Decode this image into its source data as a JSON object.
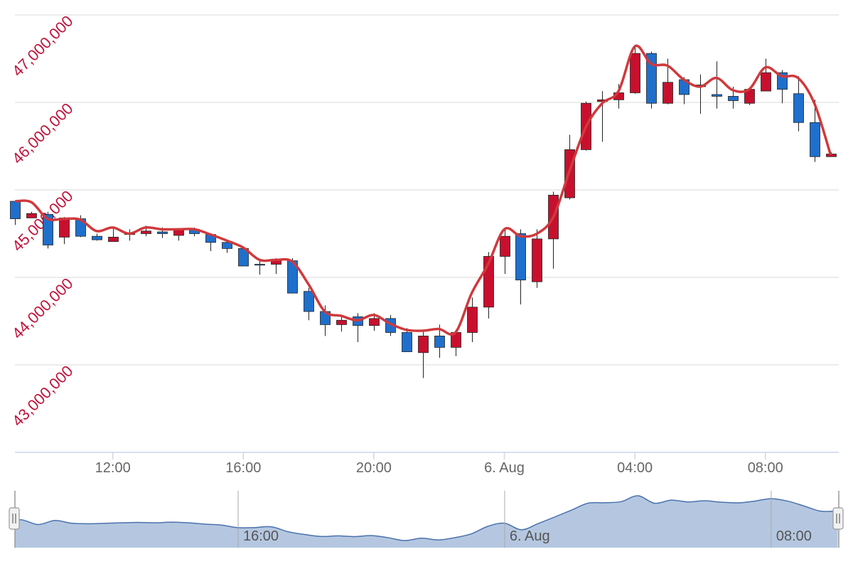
{
  "chart_data": {
    "type": "candlestick",
    "x": [
      9,
      9.5,
      10,
      10.5,
      11,
      11.5,
      12,
      12.5,
      13,
      13.5,
      14,
      14.5,
      15,
      15.5,
      16,
      16.5,
      17,
      17.5,
      18,
      18.5,
      19,
      19.5,
      20,
      20.5,
      21,
      21.5,
      22,
      22.5,
      23,
      23.5,
      24,
      24.5,
      25,
      25.5,
      26,
      26.5,
      27,
      27.5,
      28,
      28.5,
      29,
      29.5,
      30,
      30.5,
      31,
      31.5,
      32,
      32.5,
      33,
      33.5,
      34
    ],
    "open": [
      44870000,
      44680000,
      44720000,
      44460000,
      44670000,
      44470000,
      44410000,
      44490000,
      44500000,
      44520000,
      44480000,
      44550000,
      44490000,
      44400000,
      44330000,
      44150000,
      44150000,
      44190000,
      43840000,
      43610000,
      43460000,
      43550000,
      43450000,
      43530000,
      43370000,
      43140000,
      43330000,
      43200000,
      43370000,
      43660000,
      44240000,
      44500000,
      43950000,
      44440000,
      44910000,
      45460000,
      46010000,
      46030000,
      46110000,
      46560000,
      45990000,
      46260000,
      46200000,
      46090000,
      46070000,
      45990000,
      46130000,
      46340000,
      46100000,
      45770000,
      45380000
    ],
    "high": [
      44870000,
      44750000,
      44750000,
      44690000,
      44710000,
      44500000,
      44570000,
      44550000,
      44590000,
      44570000,
      44560000,
      44570000,
      44500000,
      44430000,
      44330000,
      44200000,
      44220000,
      44220000,
      43880000,
      43680000,
      43550000,
      43590000,
      43590000,
      43570000,
      43420000,
      43380000,
      43460000,
      43390000,
      43770000,
      44290000,
      44550000,
      44550000,
      44550000,
      44980000,
      45630000,
      46010000,
      46130000,
      46210000,
      46660000,
      46580000,
      46500000,
      46290000,
      46320000,
      46470000,
      46180000,
      46170000,
      46500000,
      46370000,
      46300000,
      46030000,
      45430000
    ],
    "low": [
      44600000,
      44680000,
      44330000,
      44380000,
      44460000,
      44420000,
      44410000,
      44420000,
      44470000,
      44450000,
      44420000,
      44470000,
      44300000,
      44280000,
      44130000,
      44030000,
      44040000,
      43820000,
      43510000,
      43330000,
      43380000,
      43260000,
      43390000,
      43330000,
      43150000,
      42850000,
      43080000,
      43100000,
      43260000,
      43530000,
      44040000,
      43690000,
      43880000,
      44100000,
      44890000,
      45450000,
      45550000,
      45930000,
      46100000,
      45930000,
      45980000,
      45980000,
      45870000,
      45930000,
      45930000,
      45970000,
      46130000,
      45990000,
      45670000,
      45320000,
      45380000
    ],
    "close": [
      44670000,
      44730000,
      44370000,
      44680000,
      44470000,
      44430000,
      44460000,
      44500000,
      44530000,
      44500000,
      44550000,
      44500000,
      44400000,
      44330000,
      44130000,
      44140000,
      44200000,
      43820000,
      43610000,
      43460000,
      43510000,
      43450000,
      43530000,
      43370000,
      43150000,
      43330000,
      43200000,
      43370000,
      43660000,
      44240000,
      44470000,
      43970000,
      44440000,
      44940000,
      45460000,
      45990000,
      46030000,
      46110000,
      46560000,
      45990000,
      46230000,
      46090000,
      46180000,
      46070000,
      46020000,
      46150000,
      46340000,
      46150000,
      45770000,
      45380000,
      45410000
    ],
    "up_color": "#c8102e",
    "down_color": "#1f6fcc",
    "line": {
      "type": "spline",
      "color": "#d0393c",
      "values": [
        44870000,
        44860000,
        44670000,
        44670000,
        44660000,
        44530000,
        44570000,
        44500000,
        44570000,
        44550000,
        44550000,
        44550000,
        44490000,
        44420000,
        44340000,
        44200000,
        44200000,
        44180000,
        43920000,
        43610000,
        43560000,
        43510000,
        43570000,
        43470000,
        43400000,
        43390000,
        43410000,
        43370000,
        43820000,
        44150000,
        44550000,
        44470000,
        44500000,
        44690000,
        45220000,
        45720000,
        45990000,
        46130000,
        46640000,
        46440000,
        46420000,
        46260000,
        46180000,
        46280000,
        46140000,
        46150000,
        46400000,
        46300000,
        46280000,
        45990000,
        45400000
      ]
    },
    "xlim": [
      9,
      34.25
    ],
    "xticks": [
      {
        "value": 12,
        "label": "12:00"
      },
      {
        "value": 16,
        "label": "16:00"
      },
      {
        "value": 20,
        "label": "20:00"
      },
      {
        "value": 24,
        "label": "6. Aug"
      },
      {
        "value": 28,
        "label": "04:00"
      },
      {
        "value": 32,
        "label": "08:00"
      }
    ],
    "ylim": [
      42000000,
      47000000
    ],
    "yticks": [
      {
        "value": 43000000,
        "label": "43,000,000"
      },
      {
        "value": 44000000,
        "label": "44,000,000"
      },
      {
        "value": 45000000,
        "label": "45,000,000"
      },
      {
        "value": 46000000,
        "label": "46,000,000"
      },
      {
        "value": 47000000,
        "label": "47,000,000"
      }
    ],
    "grid": true,
    "navigator": {
      "xlim": [
        9.3,
        34.03
      ],
      "fill": "#b5c7e0",
      "color": "#4a72ad",
      "xticks": [
        {
          "value": 16,
          "label": "16:00"
        },
        {
          "value": 24,
          "label": "6. Aug"
        },
        {
          "value": 32,
          "label": "08:00"
        }
      ]
    }
  }
}
